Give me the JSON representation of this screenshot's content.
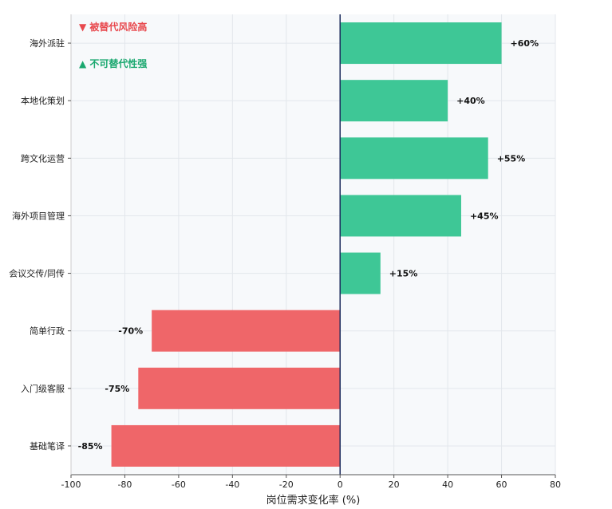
{
  "chart_data": {
    "type": "bar",
    "orientation": "horizontal",
    "categories": [
      "海外派驻",
      "本地化策划",
      "跨文化运营",
      "海外项目管理",
      "会议交传/同传",
      "简单行政",
      "入门级客服",
      "基础笔译"
    ],
    "values": [
      60,
      40,
      55,
      45,
      15,
      -70,
      -75,
      -85
    ],
    "value_labels": [
      "+60%",
      "+40%",
      "+55%",
      "+45%",
      "+15%",
      "-70%",
      "-75%",
      "-85%"
    ],
    "xlabel": "岗位需求变化率 (%)",
    "ylabel": "",
    "xlim": [
      -100,
      80
    ],
    "x_ticks": [
      -100,
      -80,
      -60,
      -40,
      -20,
      0,
      20,
      40,
      60,
      80
    ],
    "grid": true,
    "legend": {
      "placement": "top-left",
      "items": [
        {
          "marker": "▼",
          "text": "被替代风险高",
          "color": "#e8484d"
        },
        {
          "marker": "▲",
          "text": "不可替代性强",
          "color": "#1aa86f"
        }
      ]
    },
    "colors": {
      "positive": "#3ec796",
      "negative": "#ef6669",
      "zero_line": "#1b2a5c",
      "plot_background": "#f7f9fb",
      "grid": "#e3e7ec"
    }
  }
}
